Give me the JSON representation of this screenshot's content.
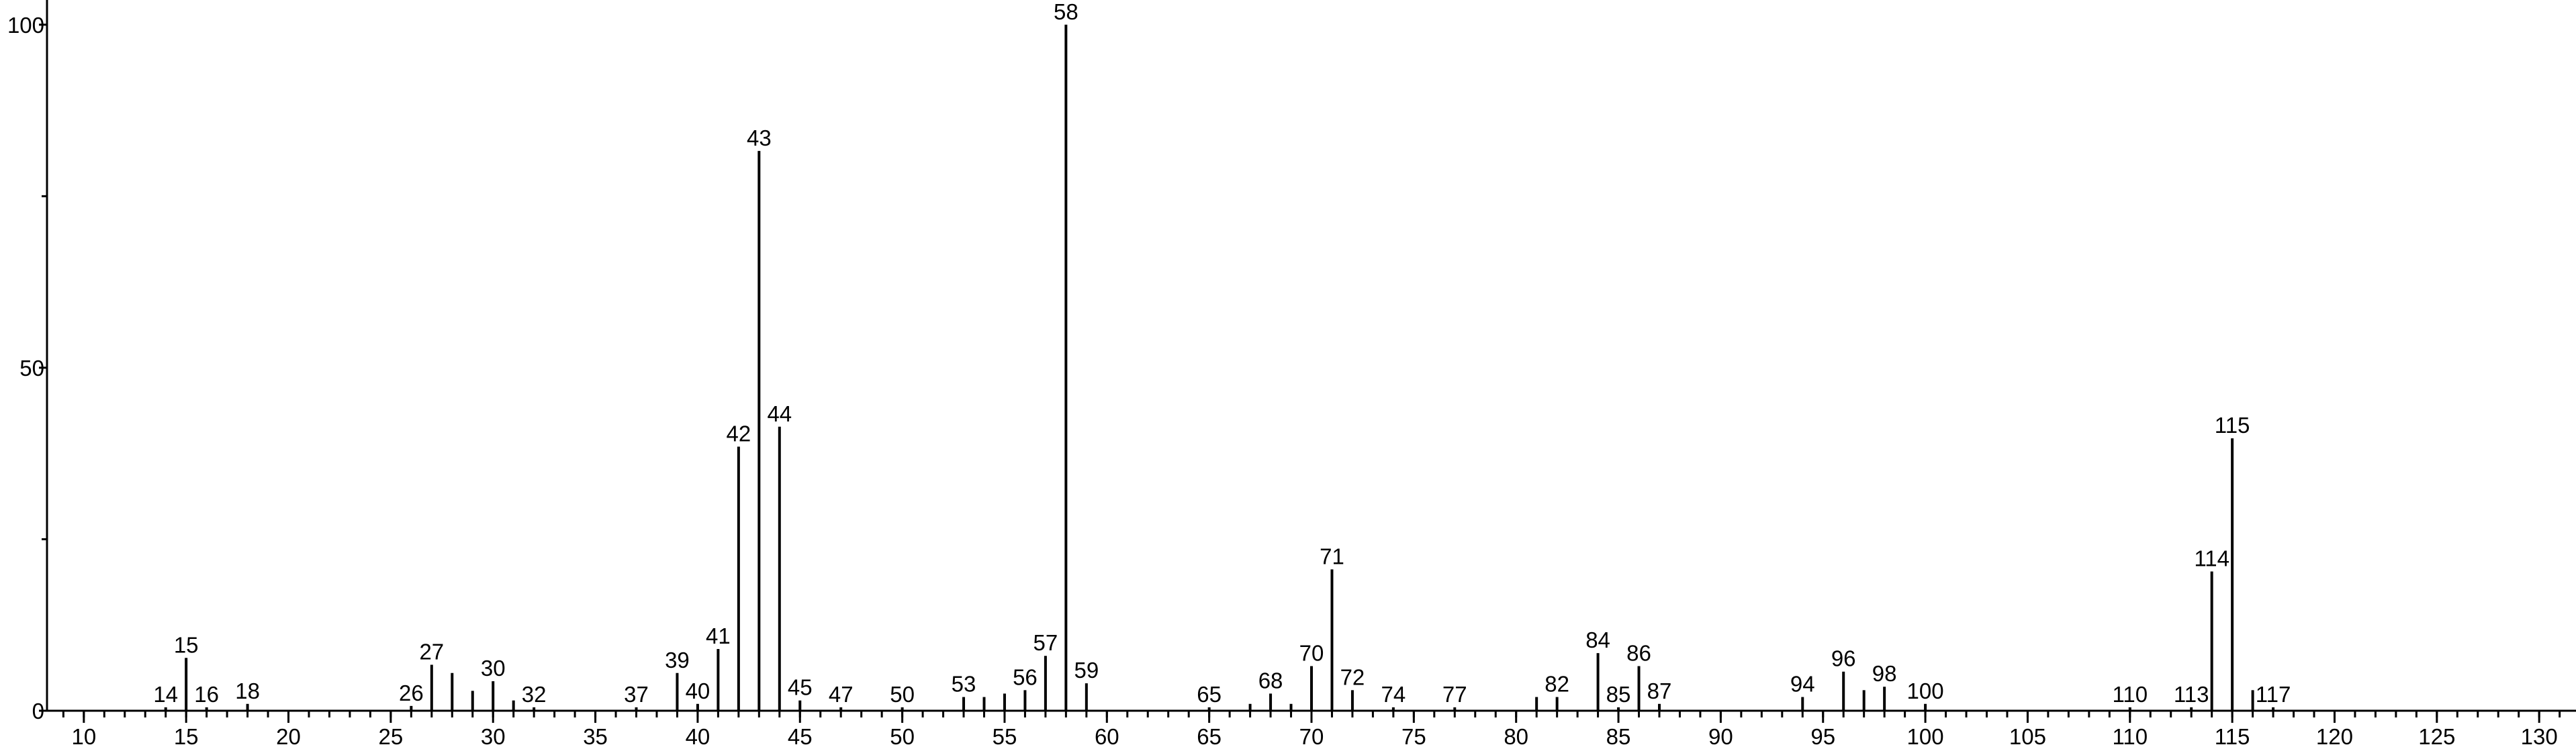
{
  "chart_data": {
    "type": "stem",
    "x": [
      14,
      15,
      16,
      18,
      26,
      27,
      28,
      29,
      30,
      31,
      32,
      37,
      39,
      40,
      41,
      42,
      43,
      44,
      45,
      47,
      50,
      53,
      54,
      55,
      56,
      57,
      58,
      59,
      65,
      67,
      68,
      69,
      70,
      71,
      72,
      74,
      77,
      81,
      82,
      84,
      85,
      86,
      87,
      94,
      96,
      97,
      98,
      100,
      110,
      113,
      114,
      115,
      116,
      117
    ],
    "values": [
      0.5,
      7.7,
      0.5,
      1,
      0.7,
      6.7,
      5.5,
      2.9,
      4.3,
      1.5,
      0.5,
      0.5,
      5.5,
      1,
      9,
      38.5,
      81.6,
      41.4,
      1.5,
      0.5,
      0.5,
      2,
      2,
      2.5,
      3,
      8,
      100,
      4,
      0.5,
      1,
      2.5,
      1,
      6.5,
      20.6,
      3,
      0.5,
      0.5,
      2,
      2,
      8.4,
      0.5,
      6.5,
      1,
      2,
      5.7,
      3,
      3.5,
      1,
      0.5,
      0.5,
      20.3,
      39.7,
      3,
      0.5
    ],
    "labels": [
      "14",
      "15",
      "16",
      "18",
      "26",
      "27",
      null,
      null,
      "30",
      null,
      "32",
      "37",
      "39",
      "40",
      "41",
      "42",
      "43",
      "44",
      "45",
      "47",
      "50",
      "53",
      null,
      null,
      "56",
      "57",
      "58",
      "59",
      "65",
      null,
      "68",
      null,
      "70",
      "71",
      "72",
      "74",
      "77",
      null,
      "82",
      "84",
      "85",
      "86",
      "87",
      "94",
      "96",
      null,
      "98",
      "100",
      "110",
      "113",
      "114",
      "115",
      null,
      "117"
    ],
    "color": "#000000",
    "xlim": [
      8.2,
      131.8
    ],
    "xticks": [
      10,
      15,
      20,
      25,
      30,
      35,
      40,
      45,
      50,
      55,
      60,
      65,
      70,
      75,
      80,
      85,
      90,
      95,
      100,
      105,
      110,
      115,
      120,
      125,
      130
    ],
    "xminorstep": 1,
    "ylim": [
      0,
      103.6
    ],
    "yticks": [
      0,
      50,
      100
    ],
    "yminorticks": [
      25,
      75
    ]
  }
}
